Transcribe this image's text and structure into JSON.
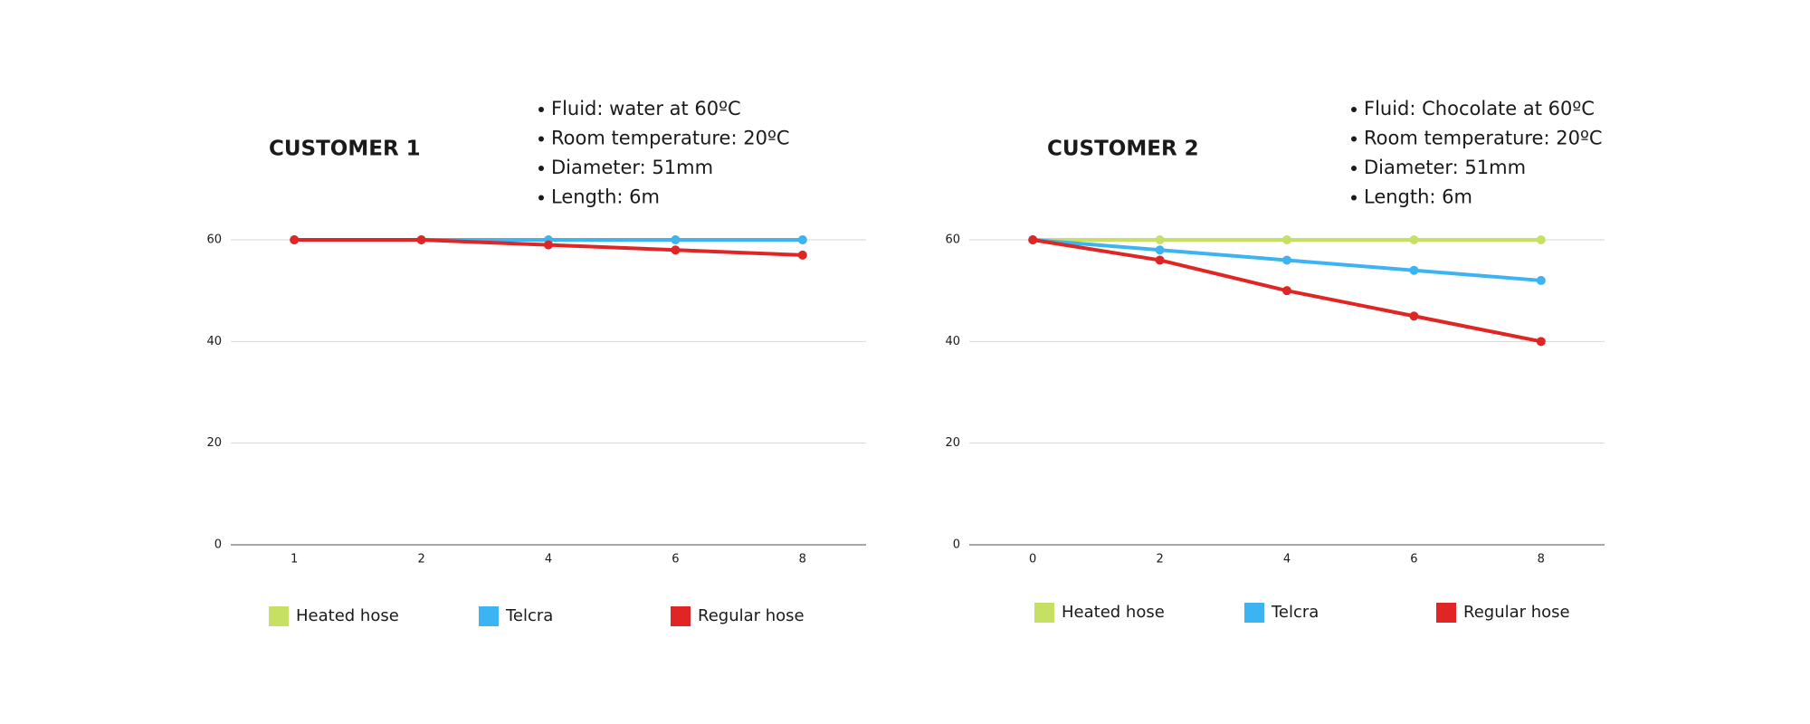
{
  "chart_data": [
    {
      "type": "line",
      "title": "CUSTOMER 1",
      "notes": [
        "Fluid: water at 60ºC",
        "Room temperature: 20ºC",
        "Diameter: 51mm",
        "Length: 6m"
      ],
      "categories": [
        "1",
        "2",
        "4",
        "6",
        "8"
      ],
      "ylim": [
        0,
        60
      ],
      "yticks": [
        0,
        20,
        40,
        60
      ],
      "grid": true,
      "series": [
        {
          "name": "Heated hose",
          "color": "#c5e063",
          "values": [
            60,
            60,
            60,
            60,
            60
          ]
        },
        {
          "name": "Telcra",
          "color": "#3db4f2",
          "values": [
            60,
            60,
            60,
            60,
            60
          ]
        },
        {
          "name": "Regular hose",
          "color": "#e02525",
          "values": [
            60,
            60,
            59,
            58,
            57
          ]
        }
      ]
    },
    {
      "type": "line",
      "title": "CUSTOMER 2",
      "notes": [
        "Fluid: Chocolate at 60ºC",
        "Room temperature: 20ºC",
        "Diameter: 51mm",
        "Length: 6m"
      ],
      "categories": [
        "0",
        "2",
        "4",
        "6",
        "8"
      ],
      "ylim": [
        0,
        60
      ],
      "yticks": [
        0,
        20,
        40,
        60
      ],
      "grid": true,
      "series": [
        {
          "name": "Heated hose",
          "color": "#c5e063",
          "values": [
            60,
            60,
            60,
            60,
            60
          ]
        },
        {
          "name": "Telcra",
          "color": "#3db4f2",
          "values": [
            60,
            58,
            56,
            54,
            52
          ]
        },
        {
          "name": "Regular hose",
          "color": "#e02525",
          "values": [
            60,
            56,
            50,
            45,
            40
          ]
        }
      ]
    }
  ]
}
